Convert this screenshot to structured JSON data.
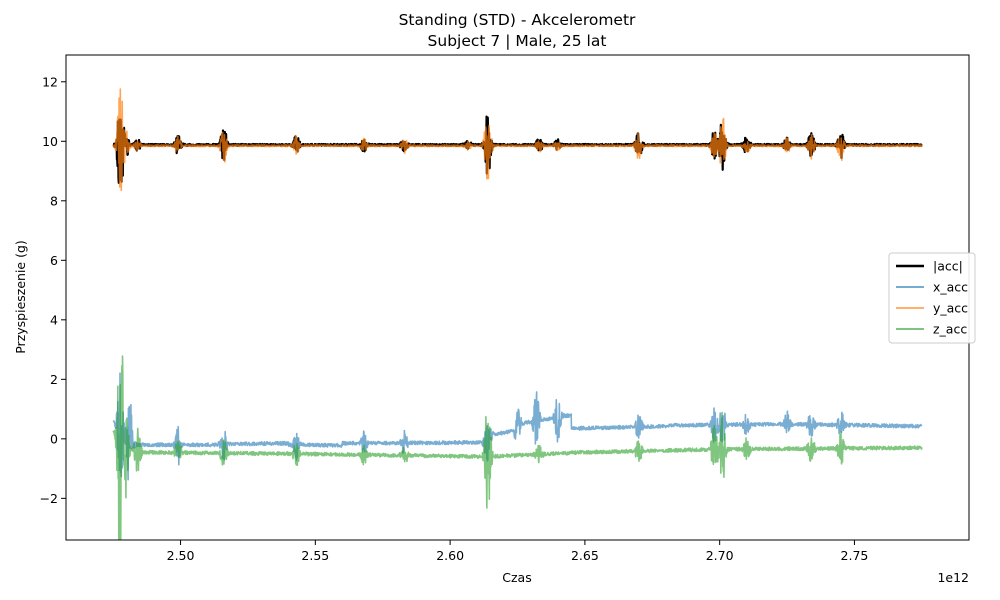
{
  "chart_data": {
    "type": "line",
    "title": "Standing (STD) - Akcelerometr",
    "subtitle": "Subject 7 | Male, 25 lat",
    "xlabel": "Czas",
    "ylabel": "Przyspieszenie (g)",
    "x_offset_label": "1e12",
    "xlim": [
      2.4575,
      2.7925
    ],
    "ylim": [
      -3.4,
      12.9
    ],
    "x_ticks": [
      2.5,
      2.55,
      2.6,
      2.65,
      2.7,
      2.75
    ],
    "x_tick_labels": [
      "2.50",
      "2.55",
      "2.60",
      "2.65",
      "2.70",
      "2.75"
    ],
    "y_ticks": [
      -2,
      0,
      2,
      4,
      6,
      8,
      10,
      12
    ],
    "y_tick_labels": [
      "−2",
      "0",
      "2",
      "4",
      "6",
      "8",
      "10",
      "12"
    ],
    "grid": false,
    "legend_position": "center-right",
    "x_range": [
      2.475,
      2.775
    ],
    "series": [
      {
        "name": "|acc|",
        "color": "#000000",
        "base": 9.88,
        "noise": 0.03,
        "bursts": [
          {
            "x": 2.4777,
            "amp": 1.8
          },
          {
            "x": 2.4795,
            "amp": 0.6
          },
          {
            "x": 2.484,
            "amp": 0.2
          },
          {
            "x": 2.499,
            "amp": 0.35
          },
          {
            "x": 2.516,
            "amp": 0.6
          },
          {
            "x": 2.543,
            "amp": 0.35
          },
          {
            "x": 2.568,
            "amp": 0.25
          },
          {
            "x": 2.583,
            "amp": 0.3
          },
          {
            "x": 2.6065,
            "amp": 0.15
          },
          {
            "x": 2.614,
            "amp": 1.1
          },
          {
            "x": 2.633,
            "amp": 0.25
          },
          {
            "x": 2.64,
            "amp": 0.2
          },
          {
            "x": 2.67,
            "amp": 0.5
          },
          {
            "x": 2.698,
            "amp": 0.5
          },
          {
            "x": 2.701,
            "amp": 0.9
          },
          {
            "x": 2.71,
            "amp": 0.3
          },
          {
            "x": 2.725,
            "amp": 0.25
          },
          {
            "x": 2.734,
            "amp": 0.45
          },
          {
            "x": 2.745,
            "amp": 0.5
          }
        ]
      },
      {
        "name": "x_acc",
        "color": "#1f77b4",
        "segments": [
          {
            "x0": 2.475,
            "x1": 2.4776,
            "y0": 0.6,
            "y1": 0.4
          },
          {
            "x0": 2.4776,
            "x1": 2.483,
            "y0": 0.2,
            "y1": -0.2
          },
          {
            "x0": 2.483,
            "x1": 2.515,
            "y0": -0.2,
            "y1": -0.2
          },
          {
            "x0": 2.515,
            "x1": 2.54,
            "y0": -0.18,
            "y1": -0.15
          },
          {
            "x0": 2.54,
            "x1": 2.56,
            "y0": -0.2,
            "y1": -0.22
          },
          {
            "x0": 2.56,
            "x1": 2.614,
            "y0": -0.15,
            "y1": -0.12
          },
          {
            "x0": 2.614,
            "x1": 2.625,
            "y0": 0.1,
            "y1": 0.3
          },
          {
            "x0": 2.625,
            "x1": 2.645,
            "y0": 0.5,
            "y1": 0.8
          },
          {
            "x0": 2.645,
            "x1": 2.68,
            "y0": 0.35,
            "y1": 0.42
          },
          {
            "x0": 2.68,
            "x1": 2.725,
            "y0": 0.45,
            "y1": 0.5
          },
          {
            "x0": 2.725,
            "x1": 2.775,
            "y0": 0.5,
            "y1": 0.42
          }
        ],
        "noise": 0.06,
        "bursts": [
          {
            "x": 2.4776,
            "amp": 1.9
          },
          {
            "x": 2.481,
            "amp": 1.7
          },
          {
            "x": 2.499,
            "amp": 0.7
          },
          {
            "x": 2.516,
            "amp": 0.6
          },
          {
            "x": 2.543,
            "amp": 0.5
          },
          {
            "x": 2.568,
            "amp": 0.4
          },
          {
            "x": 2.583,
            "amp": 0.4
          },
          {
            "x": 2.614,
            "amp": 0.8
          },
          {
            "x": 2.625,
            "amp": 0.6
          },
          {
            "x": 2.632,
            "amp": 1.0
          },
          {
            "x": 2.64,
            "amp": 0.9
          },
          {
            "x": 2.67,
            "amp": 0.5
          },
          {
            "x": 2.698,
            "amp": 0.6
          },
          {
            "x": 2.701,
            "amp": 0.7
          },
          {
            "x": 2.71,
            "amp": 0.4
          },
          {
            "x": 2.725,
            "amp": 0.4
          },
          {
            "x": 2.734,
            "amp": 0.5
          },
          {
            "x": 2.745,
            "amp": 0.5
          }
        ]
      },
      {
        "name": "y_acc",
        "color": "#ff7f0e",
        "base": 9.85,
        "noise": 0.03,
        "bursts": [
          {
            "x": 2.4777,
            "amp": 2.0
          },
          {
            "x": 2.4795,
            "amp": 0.6
          },
          {
            "x": 2.484,
            "amp": 0.2
          },
          {
            "x": 2.499,
            "amp": 0.35
          },
          {
            "x": 2.516,
            "amp": 0.6
          },
          {
            "x": 2.543,
            "amp": 0.35
          },
          {
            "x": 2.568,
            "amp": 0.25
          },
          {
            "x": 2.583,
            "amp": 0.3
          },
          {
            "x": 2.6065,
            "amp": 0.15
          },
          {
            "x": 2.614,
            "amp": 1.6
          },
          {
            "x": 2.633,
            "amp": 0.25
          },
          {
            "x": 2.64,
            "amp": 0.2
          },
          {
            "x": 2.67,
            "amp": 0.5
          },
          {
            "x": 2.698,
            "amp": 0.5
          },
          {
            "x": 2.701,
            "amp": 1.1
          },
          {
            "x": 2.71,
            "amp": 0.3
          },
          {
            "x": 2.725,
            "amp": 0.25
          },
          {
            "x": 2.734,
            "amp": 0.45
          },
          {
            "x": 2.745,
            "amp": 0.5
          }
        ]
      },
      {
        "name": "z_acc",
        "color": "#2ca02c",
        "segments": [
          {
            "x0": 2.475,
            "x1": 2.4776,
            "y0": 0.3,
            "y1": 0.0
          },
          {
            "x0": 2.4776,
            "x1": 2.483,
            "y0": -0.3,
            "y1": -0.4
          },
          {
            "x0": 2.483,
            "x1": 2.54,
            "y0": -0.45,
            "y1": -0.5
          },
          {
            "x0": 2.54,
            "x1": 2.614,
            "y0": -0.5,
            "y1": -0.6
          },
          {
            "x0": 2.614,
            "x1": 2.65,
            "y0": -0.6,
            "y1": -0.45
          },
          {
            "x0": 2.65,
            "x1": 2.7,
            "y0": -0.45,
            "y1": -0.35
          },
          {
            "x0": 2.7,
            "x1": 2.775,
            "y0": -0.35,
            "y1": -0.3
          }
        ],
        "noise": 0.06,
        "bursts": [
          {
            "x": 2.4777,
            "amp": 4.6
          },
          {
            "x": 2.4795,
            "amp": 1.8
          },
          {
            "x": 2.484,
            "amp": 0.8
          },
          {
            "x": 2.499,
            "amp": 0.5
          },
          {
            "x": 2.516,
            "amp": 0.5
          },
          {
            "x": 2.543,
            "amp": 0.4
          },
          {
            "x": 2.568,
            "amp": 0.4
          },
          {
            "x": 2.583,
            "amp": 0.3
          },
          {
            "x": 2.614,
            "amp": 1.9
          },
          {
            "x": 2.633,
            "amp": 0.4
          },
          {
            "x": 2.67,
            "amp": 0.4
          },
          {
            "x": 2.698,
            "amp": 0.8
          },
          {
            "x": 2.701,
            "amp": 1.2
          },
          {
            "x": 2.71,
            "amp": 0.5
          },
          {
            "x": 2.734,
            "amp": 0.6
          },
          {
            "x": 2.745,
            "amp": 0.6
          }
        ]
      }
    ]
  }
}
